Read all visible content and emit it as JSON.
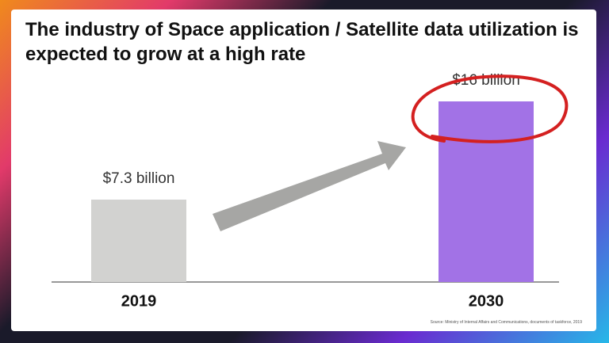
{
  "chart_data": {
    "type": "bar",
    "title": "The industry of Space application / Satellite data utilization is expected to grow at a high rate",
    "categories": [
      "2019",
      "2030"
    ],
    "values": [
      7.3,
      16
    ],
    "value_labels": [
      "$7.3 billion",
      "$16 billion"
    ],
    "colors": [
      "#d2d2d0",
      "#a272e6"
    ],
    "source": "Source: Ministry of Internal Affairs and Communications, documents of taskforce, 2019"
  }
}
